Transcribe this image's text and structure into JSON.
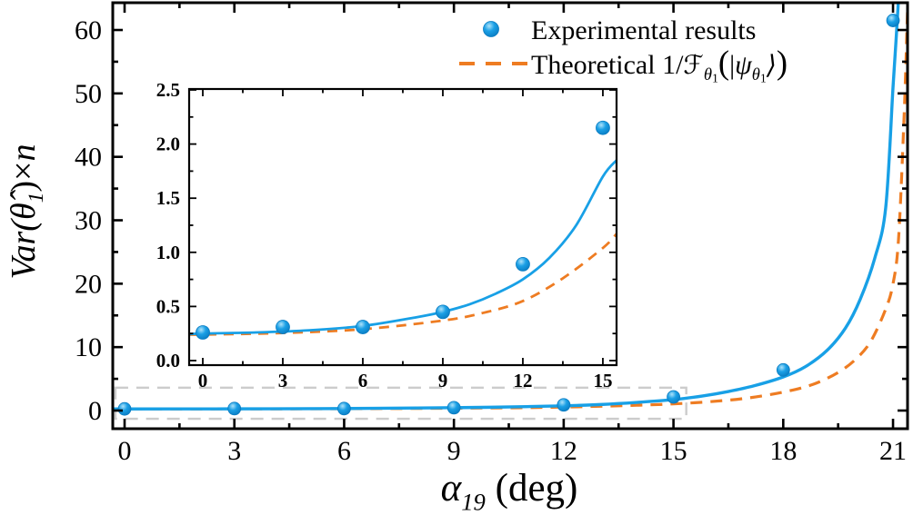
{
  "chart_data": {
    "type": "scatter",
    "title": "",
    "xlabel_parts": [
      {
        "t": "α",
        "s": "it"
      },
      {
        "t": "19",
        "s": "sub"
      },
      {
        "t": " (deg)",
        "s": "rm"
      }
    ],
    "ylabel_parts": [
      {
        "t": "Var(",
        "s": "it"
      },
      {
        "t": "θ̂",
        "s": "it"
      },
      {
        "t": "1",
        "s": "sub"
      },
      {
        "t": ")×",
        "s": "rm"
      },
      {
        "t": "n",
        "s": "it"
      }
    ],
    "xlabel_text": "α19 (deg)",
    "ylabel_text": "Var(θ̂1)×n",
    "x_ticks": [
      0,
      3,
      6,
      9,
      12,
      15,
      18,
      21
    ],
    "x_minor_ticks": [
      1.5,
      4.5,
      7.5,
      10.5,
      13.5,
      16.5,
      19.5
    ],
    "y_ticks": [
      0,
      10,
      20,
      30,
      40,
      50,
      60
    ],
    "y_minor_ticks": [
      5,
      15,
      25,
      35,
      45,
      55
    ],
    "xlim": [
      -0.32,
      21.42
    ],
    "ylim": [
      -2.9,
      64.3
    ],
    "grid": false,
    "legend_position": "top-center-right",
    "legend": [
      {
        "label": "Experimental results",
        "marker": "ball",
        "color": "#18a0e6",
        "parts": [
          {
            "t": "Experimental results",
            "s": "rm"
          }
        ]
      },
      {
        "label": "Theoretical 1/ℱθ1(|ψθ1⟩)",
        "marker": "dashed-line",
        "color": "#ee7c22",
        "parts": [
          {
            "t": "Theoretical 1/",
            "s": "rm"
          },
          {
            "t": "ℱ",
            "s": "math"
          },
          {
            "t": "θ",
            "s": "sub"
          },
          {
            "t": "1",
            "s": "subsub"
          },
          {
            "t": "(",
            "s": "big"
          },
          {
            "t": "|",
            "s": "rm"
          },
          {
            "t": "ψ",
            "s": "it"
          },
          {
            "t": "θ",
            "s": "sub"
          },
          {
            "t": "1",
            "s": "subsub"
          },
          {
            "t": "⟩",
            "s": "math"
          },
          {
            "t": ")",
            "s": "big"
          }
        ]
      }
    ],
    "series": [
      {
        "name": "Experimental results",
        "type": "scatter",
        "x": [
          0,
          3,
          6,
          9,
          12,
          15,
          18,
          21
        ],
        "y": [
          0.26,
          0.31,
          0.31,
          0.45,
          0.89,
          2.15,
          6.4,
          61.5
        ]
      },
      {
        "name": "Blue fit curve",
        "type": "line",
        "points": [
          [
            -0.32,
            0.25
          ],
          [
            0,
            0.25
          ],
          [
            2,
            0.26
          ],
          [
            4,
            0.28
          ],
          [
            6,
            0.32
          ],
          [
            8,
            0.4
          ],
          [
            9,
            0.45
          ],
          [
            10,
            0.52
          ],
          [
            11,
            0.62
          ],
          [
            12,
            0.75
          ],
          [
            13,
            0.95
          ],
          [
            14,
            1.28
          ],
          [
            15,
            1.72
          ],
          [
            15.8,
            2.3
          ],
          [
            16.5,
            3.0
          ],
          [
            17.2,
            3.9
          ],
          [
            18,
            5.3
          ],
          [
            18.6,
            6.9
          ],
          [
            19.2,
            9.5
          ],
          [
            19.7,
            13
          ],
          [
            20.1,
            17.5
          ],
          [
            20.5,
            24
          ],
          [
            20.8,
            32
          ],
          [
            21,
            51
          ],
          [
            21.1,
            60
          ],
          [
            21.17,
            67
          ]
        ]
      },
      {
        "name": "Theoretical 1/F",
        "type": "dashed-line",
        "points": [
          [
            -0.32,
            0.24
          ],
          [
            0,
            0.24
          ],
          [
            3,
            0.26
          ],
          [
            6,
            0.29
          ],
          [
            9,
            0.37
          ],
          [
            11,
            0.46
          ],
          [
            12,
            0.55
          ],
          [
            13,
            0.67
          ],
          [
            14,
            0.83
          ],
          [
            15,
            1.05
          ],
          [
            16,
            1.4
          ],
          [
            17,
            1.95
          ],
          [
            18,
            2.9
          ],
          [
            18.8,
            4.1
          ],
          [
            19.5,
            6.0
          ],
          [
            20,
            8.2
          ],
          [
            20.4,
            11
          ],
          [
            20.8,
            16
          ],
          [
            21,
            20
          ],
          [
            21.15,
            27
          ],
          [
            21.3,
            46
          ],
          [
            21.38,
            60
          ],
          [
            21.42,
            68
          ]
        ]
      }
    ],
    "zoom_region": {
      "x": [
        -0.25,
        15.35
      ],
      "y": [
        -1.3,
        3.6
      ]
    },
    "inset": {
      "x_ticks": [
        0,
        3,
        6,
        9,
        12,
        15
      ],
      "x_minor_ticks": [
        1.5,
        4.5,
        7.5,
        10.5,
        13.5
      ],
      "y_ticks": [
        0.0,
        0.5,
        1.0,
        1.5,
        2.0,
        2.5
      ],
      "y_minor_ticks": [
        0.25,
        0.75,
        1.25,
        1.75,
        2.25
      ],
      "xlim": [
        -0.51,
        15.51
      ],
      "ylim": [
        -0.04,
        2.52
      ],
      "points": {
        "x": [
          0,
          3,
          6,
          9,
          12,
          15
        ],
        "y": [
          0.26,
          0.31,
          0.31,
          0.45,
          0.89,
          2.15
        ]
      },
      "fit": [
        [
          -0.51,
          0.245
        ],
        [
          0,
          0.25
        ],
        [
          2,
          0.26
        ],
        [
          4,
          0.28
        ],
        [
          6,
          0.32
        ],
        [
          8,
          0.4
        ],
        [
          9,
          0.45
        ],
        [
          10,
          0.52
        ],
        [
          11,
          0.62
        ],
        [
          12,
          0.75
        ],
        [
          13,
          0.95
        ],
        [
          14,
          1.25
        ],
        [
          15,
          1.7
        ],
        [
          15.51,
          1.85
        ]
      ],
      "theory": [
        [
          -0.51,
          0.24
        ],
        [
          0,
          0.24
        ],
        [
          3,
          0.255
        ],
        [
          6,
          0.29
        ],
        [
          9,
          0.37
        ],
        [
          10.5,
          0.44
        ],
        [
          12,
          0.55
        ],
        [
          13.5,
          0.76
        ],
        [
          15,
          1.04
        ],
        [
          15.51,
          1.17
        ]
      ]
    },
    "colors": {
      "blue": "#18a0e6",
      "orange": "#ee7c22",
      "ball_center": "#aee2f9",
      "ball_mid": "#1ba0e6",
      "ball_edge": "#0a7cc2",
      "zoom_rect_gray": "#cccccc",
      "frame": "#000000"
    }
  }
}
